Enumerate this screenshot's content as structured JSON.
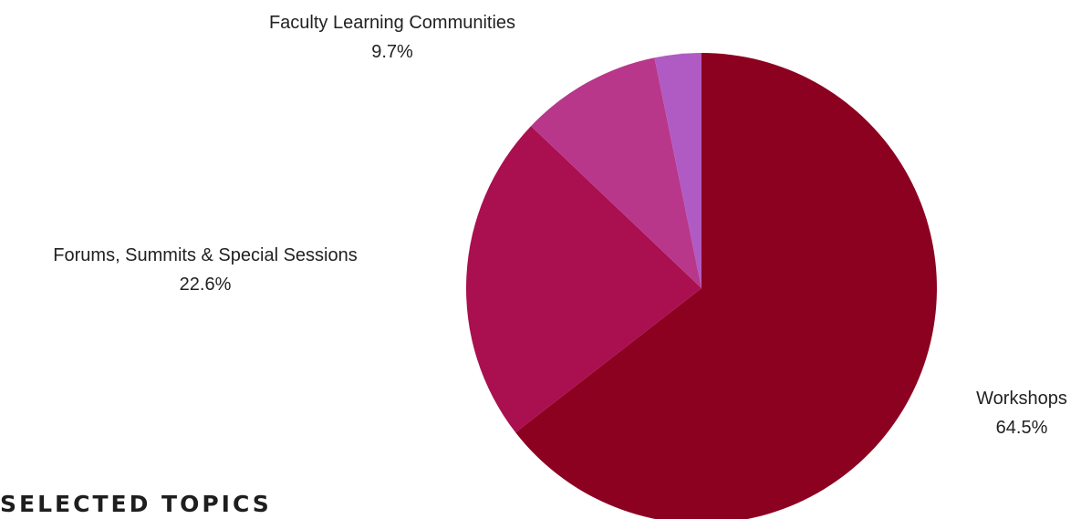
{
  "chart_data": {
    "type": "pie",
    "title": "",
    "slices": [
      {
        "label": "Workshops",
        "value": 64.5,
        "display": "64.5%",
        "color": "#8c0020"
      },
      {
        "label": "Forums, Summits & Special Sessions",
        "value": 22.6,
        "display": "22.6%",
        "color": "#aa0f50"
      },
      {
        "label": "Faculty Learning Communities",
        "value": 9.7,
        "display": "9.7%",
        "color": "#b8378a"
      },
      {
        "label": "",
        "value": 3.2,
        "color": "#b05ac4"
      }
    ],
    "start_angle": "12 o'clock",
    "direction": "clockwise"
  },
  "section": {
    "heading": "SELECTED TOPICS"
  }
}
